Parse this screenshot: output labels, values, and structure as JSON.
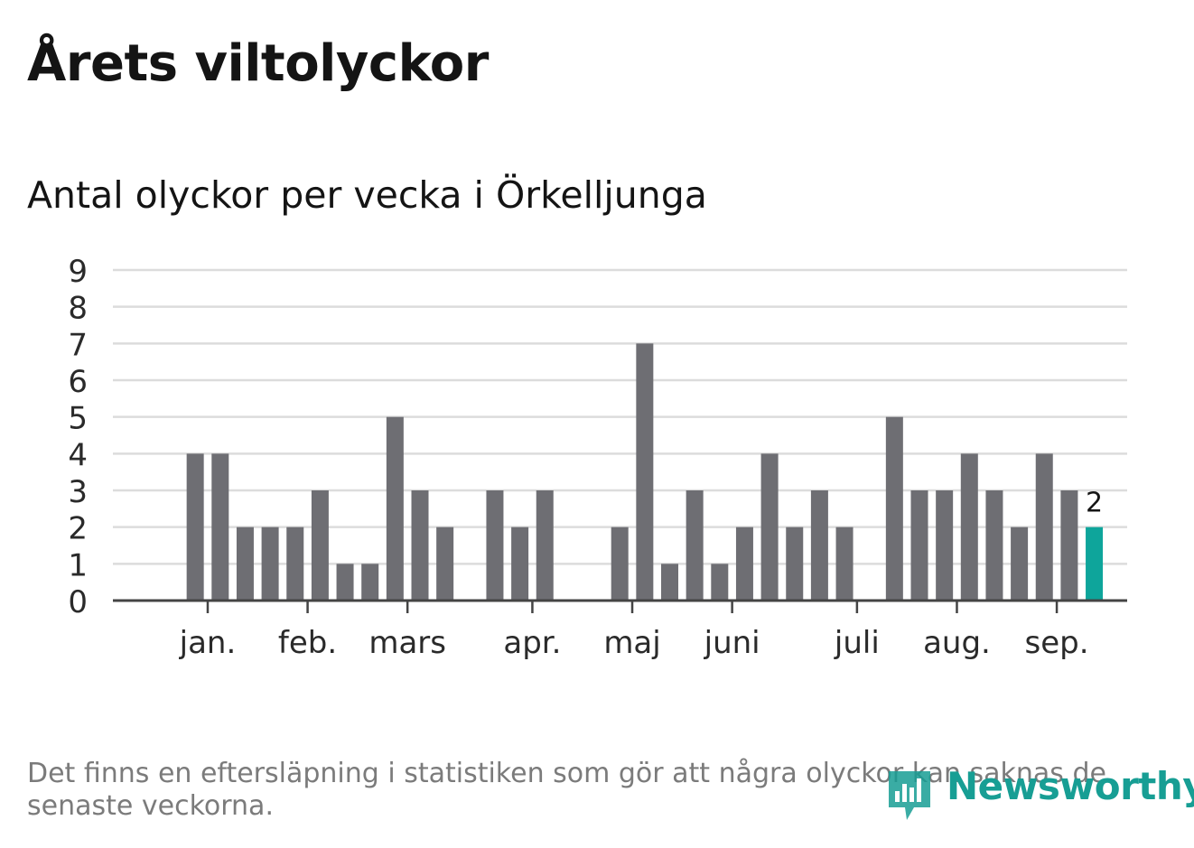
{
  "colors": {
    "bar": "#6e6e73",
    "highlight": "#0ea59b",
    "grid": "#dcdcdc",
    "axis": "#444444",
    "brand": "#179e94"
  },
  "heading": {
    "title": "Årets viltolyckor"
  },
  "footnote": "Det finns en eftersläpning i statistiken som gör att några olyckor kan saknas de senaste veckorna.",
  "logo": {
    "text": "Newsworthy",
    "icon": "bar-chart-speech-bubble-icon"
  },
  "chart_data": {
    "type": "bar",
    "title": "Antal olyckor per vecka i Örkelljunga",
    "xlabel": "",
    "ylabel": "",
    "ylim": [
      0,
      9
    ],
    "yticks": [
      0,
      1,
      2,
      3,
      4,
      5,
      6,
      7,
      8,
      9
    ],
    "grid": true,
    "weeks": [
      1,
      2,
      3,
      4,
      5,
      6,
      7,
      8,
      9,
      10,
      11,
      12,
      13,
      14,
      15,
      16,
      17,
      18,
      19,
      20,
      21,
      22,
      23,
      24,
      25,
      26,
      27,
      28,
      29,
      30,
      31,
      32,
      33,
      34,
      35,
      36,
      37,
      38
    ],
    "values": [
      0,
      4,
      4,
      2,
      2,
      2,
      3,
      1,
      1,
      5,
      3,
      2,
      0,
      3,
      2,
      3,
      0,
      0,
      2,
      7,
      1,
      3,
      1,
      2,
      4,
      2,
      3,
      2,
      0,
      5,
      3,
      3,
      4,
      3,
      2,
      4,
      3,
      2
    ],
    "highlight_last": true,
    "highlight_label": "2",
    "month_labels": [
      {
        "label": "jan.",
        "week": 2.5
      },
      {
        "label": "feb.",
        "week": 6.5
      },
      {
        "label": "mars",
        "week": 10.5
      },
      {
        "label": "apr.",
        "week": 15.5
      },
      {
        "label": "maj",
        "week": 19.5
      },
      {
        "label": "juni",
        "week": 23.5
      },
      {
        "label": "juli",
        "week": 28.5
      },
      {
        "label": "aug.",
        "week": 32.5
      },
      {
        "label": "sep.",
        "week": 36.5
      }
    ]
  }
}
